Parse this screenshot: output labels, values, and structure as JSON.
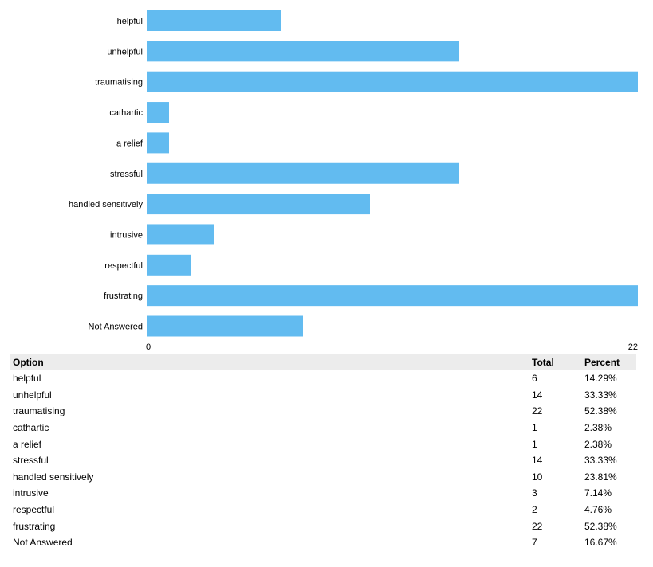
{
  "chart_data": {
    "type": "bar",
    "orientation": "horizontal",
    "categories": [
      "helpful",
      "unhelpful",
      "traumatising",
      "cathartic",
      "a relief",
      "stressful",
      "handled sensitively",
      "intrusive",
      "respectful",
      "frustrating",
      "Not Answered"
    ],
    "values": [
      6,
      14,
      22,
      1,
      1,
      14,
      10,
      3,
      2,
      22,
      7
    ],
    "xlim": [
      0,
      22
    ],
    "x_ticks": [
      "0",
      "22"
    ],
    "bar_color": "#62bbf0",
    "grid": false,
    "legend": "none"
  },
  "table": {
    "headers": {
      "option": "Option",
      "total": "Total",
      "percent": "Percent"
    },
    "rows": [
      {
        "option": "helpful",
        "total": "6",
        "percent": "14.29%"
      },
      {
        "option": "unhelpful",
        "total": "14",
        "percent": "33.33%"
      },
      {
        "option": "traumatising",
        "total": "22",
        "percent": "52.38%"
      },
      {
        "option": "cathartic",
        "total": "1",
        "percent": "2.38%"
      },
      {
        "option": "a relief",
        "total": "1",
        "percent": "2.38%"
      },
      {
        "option": "stressful",
        "total": "14",
        "percent": "33.33%"
      },
      {
        "option": "handled sensitively",
        "total": "10",
        "percent": "23.81%"
      },
      {
        "option": "intrusive",
        "total": "3",
        "percent": "7.14%"
      },
      {
        "option": "respectful",
        "total": "2",
        "percent": "4.76%"
      },
      {
        "option": "frustrating",
        "total": "22",
        "percent": "52.38%"
      },
      {
        "option": "Not Answered",
        "total": "7",
        "percent": "16.67%"
      }
    ]
  }
}
